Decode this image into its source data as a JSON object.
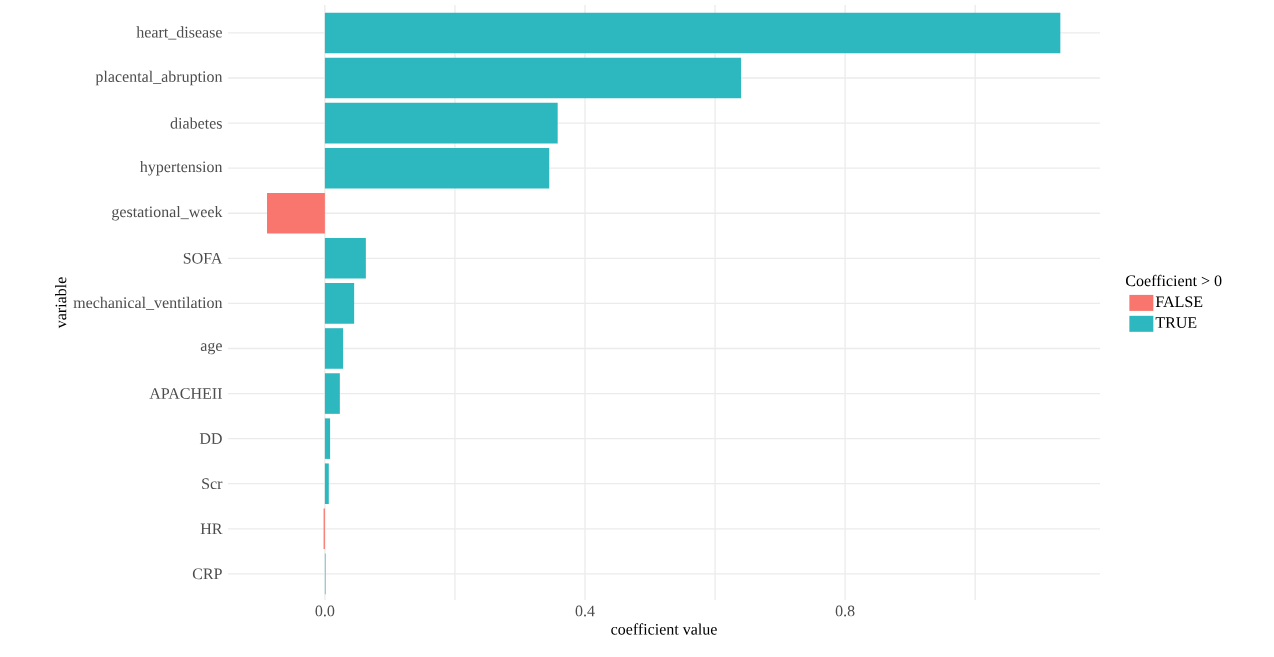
{
  "chart_data": {
    "type": "bar",
    "orientation": "horizontal",
    "xlabel": "coefficient value",
    "ylabel": "variable",
    "legend_title": "Coefficient > 0",
    "categories": [
      "heart_disease",
      "placental_abruption",
      "diabetes",
      "hypertension",
      "gestational_week",
      "SOFA",
      "mechanical_ventilation",
      "age",
      "APACHEII",
      "DD",
      "Scr",
      "HR",
      "CRP"
    ],
    "series": [
      {
        "name": "FALSE",
        "color": "#f8766d",
        "values": [
          null,
          null,
          null,
          null,
          -0.089,
          null,
          null,
          null,
          null,
          null,
          null,
          -0.002,
          null
        ]
      },
      {
        "name": "TRUE",
        "color": "#2db8bf",
        "values": [
          1.131,
          0.64,
          0.358,
          0.345,
          null,
          0.063,
          0.045,
          0.028,
          0.023,
          0.008,
          0.006,
          null,
          0.001
        ]
      }
    ],
    "xlim": [
      -0.149,
      1.192
    ],
    "xticks": [
      {
        "value": 0,
        "label": "0.0"
      },
      {
        "value": 0.2,
        "label": null
      },
      0.4,
      {
        "value": 0.6,
        "label": null
      },
      0.8,
      {
        "value": 1.0,
        "label": null
      }
    ],
    "grid": true,
    "legend": "right"
  }
}
